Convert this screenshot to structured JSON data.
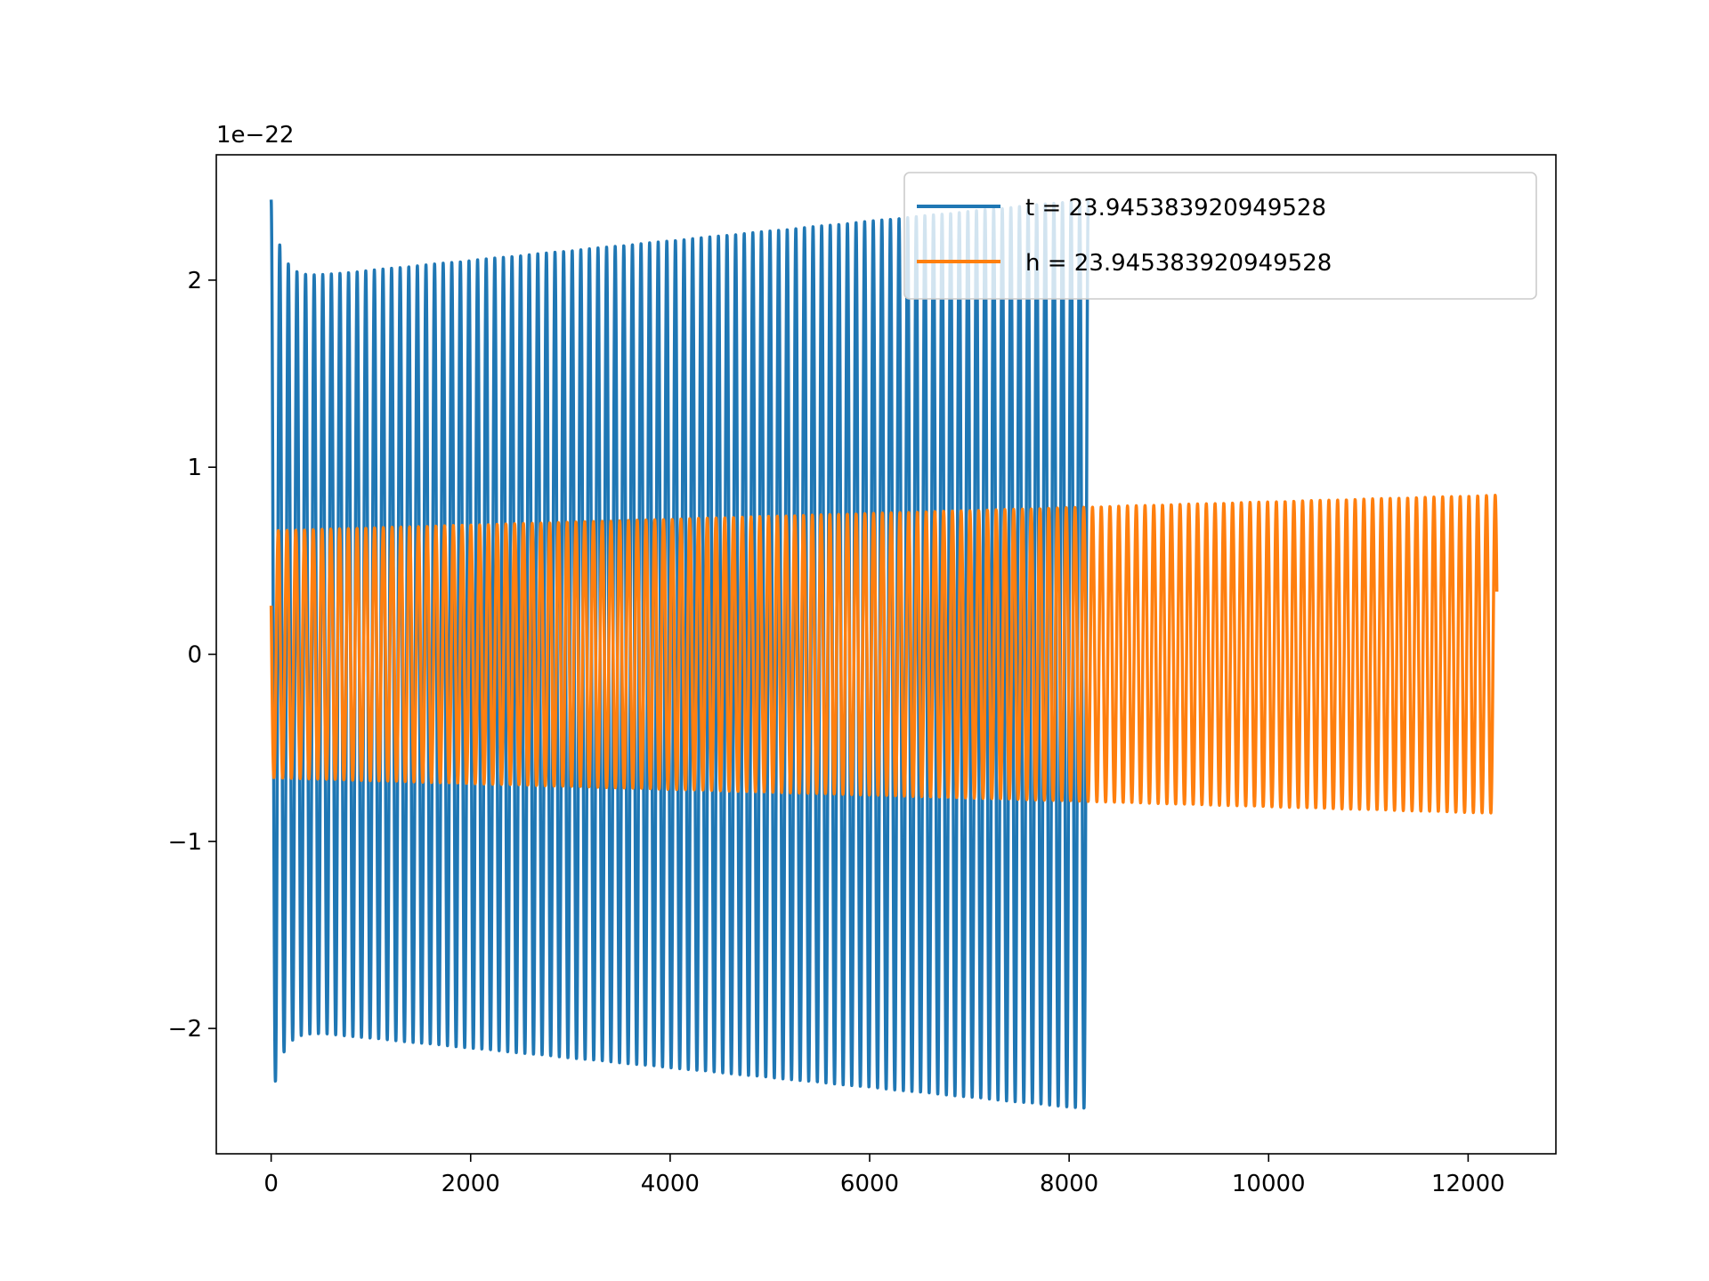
{
  "chart_data": {
    "type": "line",
    "title": "",
    "xlabel": "",
    "ylabel": "",
    "y_offset_label": "1e−22",
    "xlim": [
      -550,
      12880
    ],
    "ylim": [
      -2.67,
      2.67
    ],
    "xticks": [
      0,
      2000,
      4000,
      6000,
      8000,
      10000,
      12000
    ],
    "xtick_labels": [
      "0",
      "2000",
      "4000",
      "6000",
      "8000",
      "10000",
      "12000"
    ],
    "yticks": [
      -2,
      -1,
      0,
      1,
      2
    ],
    "ytick_labels": [
      "−2",
      "−1",
      "0",
      "1",
      "2"
    ],
    "grid": false,
    "legend_position": "upper right",
    "series": [
      {
        "name": "t = 23.945383920949528",
        "color": "#1f77b4",
        "x_start": 0,
        "x_end": 8192,
        "n_cycles": 95,
        "amplitude_start": 2.0,
        "amplitude_end": 2.43,
        "initial_spike": 2.43
      },
      {
        "name": "h = 23.945383920949528",
        "color": "#ff7f0e",
        "x_start": 0,
        "x_end": 12288,
        "n_cycles": 140,
        "amplitude_start": 0.66,
        "amplitude_end": 0.85,
        "initial_value": 0.26
      }
    ]
  }
}
